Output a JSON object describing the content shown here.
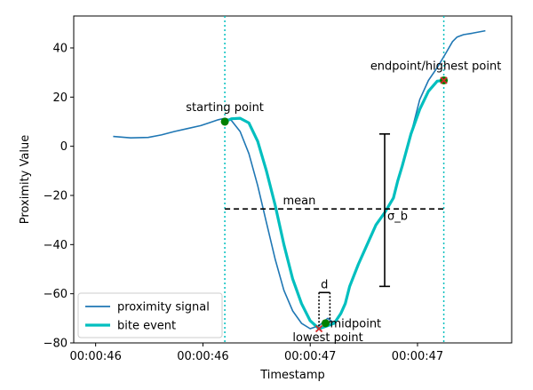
{
  "chart_data": {
    "type": "line",
    "title": "",
    "xlabel": "Timestamp",
    "ylabel": "Proximity Value",
    "xlim": [
      0,
      100
    ],
    "ylim": [
      -80,
      53
    ],
    "x_ticks": [
      {
        "pos": 5,
        "label": "00:00:46"
      },
      {
        "pos": 29.5,
        "label": "00:00:46"
      },
      {
        "pos": 54,
        "label": "00:00:47"
      },
      {
        "pos": 78.5,
        "label": "00:00:47"
      }
    ],
    "y_ticks": [
      -80,
      -60,
      -40,
      -20,
      0,
      20,
      40
    ],
    "grid": false,
    "legend_position": "lower-left",
    "series": [
      {
        "name": "proximity signal",
        "color": "#1f77b4",
        "x": [
          9,
          13,
          17,
          20,
          23,
          26,
          29,
          31,
          33,
          34.5,
          36,
          38,
          40,
          42,
          44,
          46,
          48,
          50,
          52,
          54,
          56,
          58,
          59.5,
          61,
          62,
          63,
          65,
          67,
          69,
          71,
          73,
          74,
          75,
          77,
          79,
          81,
          83,
          85,
          86.5,
          87.5,
          89,
          91,
          94
        ],
        "y": [
          4,
          3.4,
          3.6,
          4.6,
          6,
          7.2,
          8.4,
          9.6,
          10.8,
          11.4,
          10.5,
          6,
          -3,
          -16,
          -31,
          -46,
          -58.6,
          -67,
          -72,
          -74.2,
          -73,
          -70,
          -72,
          -68,
          -64,
          -57,
          -48,
          -40,
          -32,
          -27,
          -21,
          -14,
          -8,
          5,
          19,
          26.8,
          32,
          38,
          42.6,
          44.4,
          45.4,
          46,
          47
        ]
      },
      {
        "name": "bite event",
        "color": "#00bfbf",
        "x": [
          34.5,
          36,
          38,
          40,
          42,
          44,
          46,
          48,
          50,
          52,
          54,
          56,
          58,
          59.5,
          61,
          62,
          63,
          65,
          67,
          69,
          71,
          73,
          74,
          75,
          77,
          79,
          81,
          83,
          84.5
        ],
        "y": [
          10,
          11.2,
          11.4,
          9.5,
          2,
          -10,
          -24,
          -40,
          -54,
          -64,
          -71,
          -74.2,
          -73,
          -72,
          -68,
          -64,
          -57,
          -48,
          -40,
          -32,
          -27,
          -21,
          -14,
          -8,
          5,
          15,
          22.4,
          26.5,
          26.8
        ]
      }
    ],
    "markers": {
      "start": {
        "x": 34.5,
        "y": 10,
        "color": "#008000"
      },
      "end": {
        "x": 84.5,
        "y": 26.8,
        "color": "#d62728"
      },
      "lowest": {
        "x": 56,
        "y": -74.2,
        "color": "#d62728"
      },
      "mid": {
        "x": 57.5,
        "y": -72,
        "color": "#008000"
      }
    },
    "vlines": [
      34.5,
      84.5
    ],
    "mean": {
      "y": -25.5,
      "x0": 34.5,
      "x1": 84.5
    },
    "sigma": {
      "x": 71,
      "y_top": 5,
      "y_bottom": -57
    },
    "d_bracket": {
      "x0": 56,
      "x1": 58.5,
      "y_top": -59.5
    },
    "annotations": {
      "start": "starting point",
      "end": "endpoint/highest point",
      "lowest": "lowest point",
      "mid": "midpoint",
      "mean": "mean",
      "sigma": "σ_b",
      "d": "d"
    }
  }
}
